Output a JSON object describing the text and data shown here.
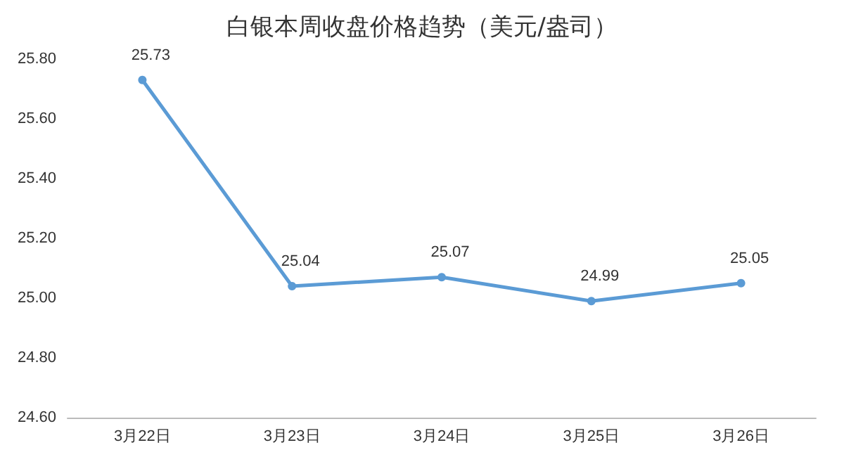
{
  "chart_data": {
    "type": "line",
    "title": "白银本周收盘价格趋势（美元/盎司）",
    "categories": [
      "3月22日",
      "3月23日",
      "3月24日",
      "3月25日",
      "3月26日"
    ],
    "series": [
      {
        "color": "#5b9bd5",
        "values": [
          25.73,
          25.04,
          25.07,
          24.99,
          25.05
        ]
      }
    ],
    "ylim": [
      24.6,
      25.8
    ],
    "yticks": [
      {
        "value": 24.6,
        "label": "24.60"
      },
      {
        "value": 24.8,
        "label": "24.80"
      },
      {
        "value": 25.0,
        "label": "25.00"
      },
      {
        "value": 25.2,
        "label": "25.20"
      },
      {
        "value": 25.4,
        "label": "25.40"
      },
      {
        "value": 25.6,
        "label": "25.60"
      },
      {
        "value": 25.8,
        "label": "25.80"
      }
    ],
    "data_labels": true,
    "marker": "circle",
    "line_style": "solid",
    "grid": false
  }
}
